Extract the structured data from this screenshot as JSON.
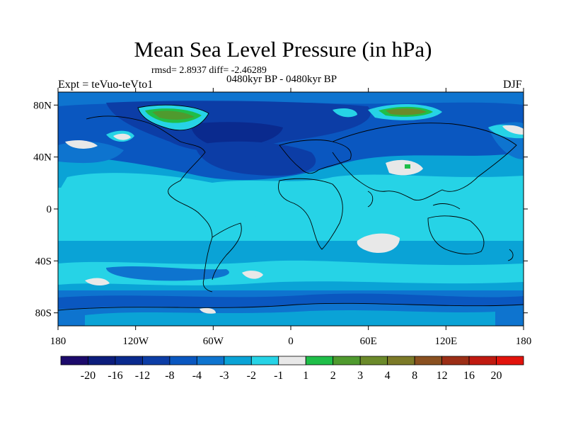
{
  "title": "Mean Sea Level Pressure (in hPa)",
  "stats_line": "rmsd= 2.8937 diff= -2.46289",
  "period_line": "0480kyr BP - 0480kyr BP",
  "experiment_label": "Expt = teVuo-teVto1",
  "season_label": "DJF",
  "axes": {
    "lat_ticks": [
      {
        "lat": 80,
        "label": "80N"
      },
      {
        "lat": 40,
        "label": "40N"
      },
      {
        "lat": 0,
        "label": "0"
      },
      {
        "lat": -40,
        "label": "40S"
      },
      {
        "lat": -80,
        "label": "80S"
      }
    ],
    "lon_ticks": [
      {
        "lon": -180,
        "label": "180"
      },
      {
        "lon": -120,
        "label": "120W"
      },
      {
        "lon": -60,
        "label": "60W"
      },
      {
        "lon": 0,
        "label": "0"
      },
      {
        "lon": 60,
        "label": "60E"
      },
      {
        "lon": 120,
        "label": "120E"
      },
      {
        "lon": 180,
        "label": "180"
      }
    ]
  },
  "colorbar": {
    "colors": [
      "#1c0a6b",
      "#0c1d7c",
      "#0a2a8e",
      "#0c3da6",
      "#0a57c0",
      "#0e74cf",
      "#0aa3d6",
      "#26d3e6",
      "#e8e8e8",
      "#1fbe48",
      "#4f9a2e",
      "#6b8a2a",
      "#7c7a28",
      "#8a5020",
      "#9c2e16",
      "#c01a10",
      "#e2130c"
    ],
    "labels": [
      "-20",
      "-16",
      "-12",
      "-8",
      "-4",
      "-3",
      "-2",
      "-1",
      "1",
      "2",
      "3",
      "4",
      "8",
      "12",
      "16",
      "20"
    ]
  }
}
